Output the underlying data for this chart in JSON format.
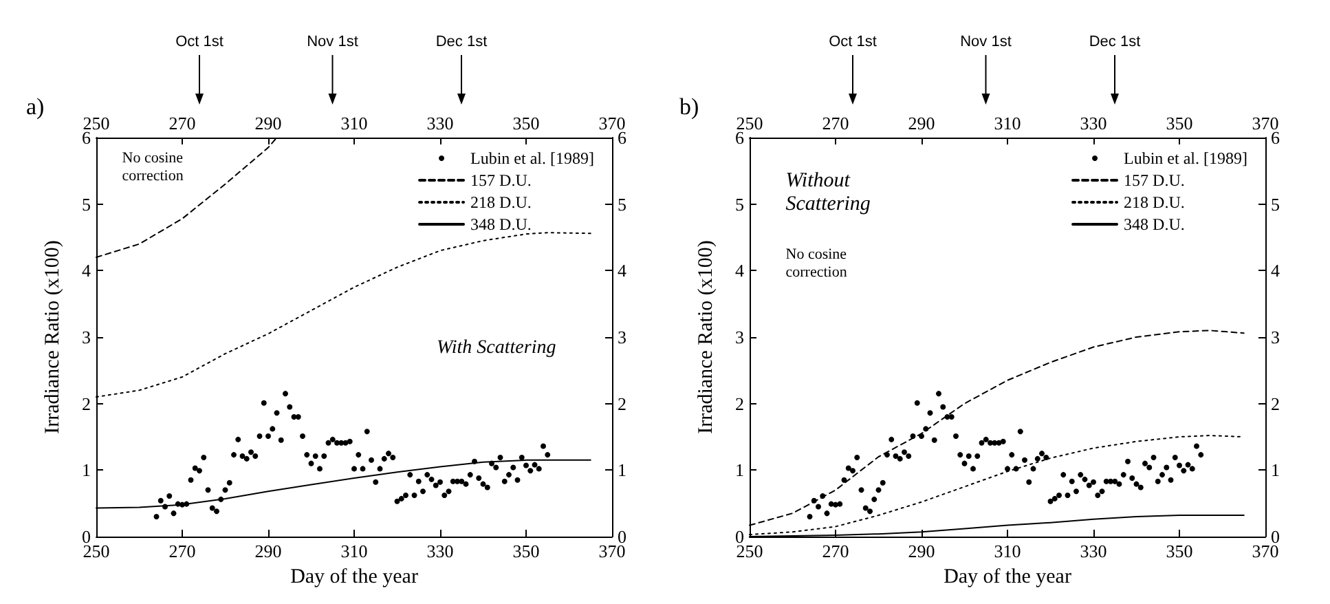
{
  "chart_data": [
    {
      "type": "line",
      "title": "a)",
      "xlabel": "Day of the year",
      "ylabel": "Irradiance Ratio (x100)",
      "xlim": [
        250,
        370
      ],
      "xticks": [
        250,
        270,
        290,
        310,
        330,
        350,
        370
      ],
      "x2lim": [
        250,
        370
      ],
      "x2ticks": [
        250,
        270,
        290,
        310,
        330,
        350,
        370
      ],
      "ylim": [
        0,
        6
      ],
      "yticks": [
        0,
        1,
        2,
        3,
        4,
        5,
        6
      ],
      "y2lim": [
        0,
        6
      ],
      "y2ticks": [
        0,
        1,
        2,
        3,
        4,
        5,
        6
      ],
      "legend": "top right",
      "grid": false,
      "marker": "none",
      "annotations": [
        "No cosine correction",
        "With Scattering",
        "Oct 1st",
        "Nov 1st",
        "Dec 1st"
      ],
      "series": [
        {
          "name": "Lubin et al. [1989]",
          "type": "scatter",
          "marker": "circle",
          "color": "#000000",
          "x": [
            264,
            265,
            266,
            267,
            268,
            269,
            270,
            271,
            272,
            273,
            274,
            275,
            276,
            277,
            278,
            279,
            280,
            281,
            282,
            283,
            284,
            285,
            286,
            287,
            288,
            289,
            290,
            291,
            292,
            293,
            294,
            295,
            296,
            297,
            298,
            299,
            300,
            301,
            302,
            303,
            304,
            305,
            306,
            307,
            308,
            309,
            310,
            311,
            312,
            313,
            314,
            315,
            316,
            317,
            318,
            319,
            320,
            321,
            322,
            323,
            324,
            325,
            326,
            327,
            328,
            329,
            330,
            331,
            332,
            333,
            334,
            335,
            336,
            337,
            338,
            339,
            340,
            341,
            342,
            343,
            344,
            345,
            346,
            347,
            348,
            349,
            350,
            351,
            352,
            353,
            354,
            355
          ],
          "values": [
            0.3,
            0.54,
            0.45,
            0.61,
            0.35,
            0.49,
            0.48,
            0.49,
            0.85,
            1.03,
            0.99,
            1.19,
            0.7,
            0.43,
            0.38,
            0.56,
            0.7,
            0.81,
            1.23,
            1.46,
            1.21,
            1.17,
            1.27,
            1.21,
            1.51,
            2.01,
            1.51,
            1.62,
            1.86,
            1.45,
            2.15,
            1.95,
            1.8,
            1.8,
            1.51,
            1.23,
            1.1,
            1.21,
            1.02,
            1.21,
            1.41,
            1.46,
            1.41,
            1.41,
            1.41,
            1.43,
            1.02,
            1.23,
            1.02,
            1.58,
            1.15,
            0.82,
            1.02,
            1.17,
            1.25,
            1.19,
            0.53,
            0.57,
            0.62,
            0.93,
            0.62,
            0.83,
            0.68,
            0.93,
            0.86,
            0.77,
            0.82,
            0.62,
            0.68,
            0.83,
            0.83,
            0.83,
            0.79,
            0.93,
            1.13,
            0.88,
            0.79,
            0.74,
            1.1,
            1.04,
            1.19,
            0.83,
            0.93,
            1.04,
            0.85,
            1.19,
            1.07,
            0.99,
            1.08,
            1.02,
            1.36,
            1.23
          ]
        },
        {
          "name": "157 D.U.",
          "color": "#000000",
          "line_style": "dashed",
          "x": [
            250,
            260,
            270,
            280,
            290,
            292
          ],
          "values": [
            4.2,
            4.4,
            4.78,
            5.3,
            5.85,
            6.0
          ]
        },
        {
          "name": "218 D.U.",
          "color": "#000000",
          "line_style": "dotted",
          "x": [
            250,
            260,
            270,
            280,
            290,
            300,
            310,
            320,
            330,
            340,
            350,
            355,
            365
          ],
          "values": [
            2.1,
            2.2,
            2.4,
            2.75,
            3.05,
            3.4,
            3.75,
            4.05,
            4.3,
            4.45,
            4.55,
            4.57,
            4.56
          ]
        },
        {
          "name": "348 D.U.",
          "color": "#000000",
          "line_style": "solid",
          "x": [
            250,
            260,
            270,
            280,
            290,
            300,
            310,
            320,
            330,
            340,
            350,
            365
          ],
          "values": [
            0.43,
            0.44,
            0.48,
            0.57,
            0.68,
            0.78,
            0.88,
            0.97,
            1.05,
            1.12,
            1.15,
            1.15
          ]
        }
      ]
    },
    {
      "type": "line",
      "title": "b)",
      "xlabel": "Day of the year",
      "ylabel": "Irradiance Ratio (x100)",
      "xlim": [
        250,
        370
      ],
      "xticks": [
        250,
        270,
        290,
        310,
        330,
        350,
        370
      ],
      "x2lim": [
        250,
        370
      ],
      "x2ticks": [
        250,
        270,
        290,
        310,
        330,
        350,
        370
      ],
      "ylim": [
        0,
        6
      ],
      "yticks": [
        0,
        1,
        2,
        3,
        4,
        5,
        6
      ],
      "y2lim": [
        0,
        6
      ],
      "y2ticks": [
        0,
        1,
        2,
        3,
        4,
        5,
        6
      ],
      "legend": "top right",
      "grid": false,
      "marker": "none",
      "annotations": [
        "Without Scattering",
        "No cosine correction",
        "Oct 1st",
        "Nov 1st",
        "Dec 1st"
      ],
      "series": [
        {
          "name": "Lubin et al. [1989]",
          "type": "scatter",
          "marker": "circle",
          "color": "#000000",
          "x": [
            264,
            265,
            266,
            267,
            268,
            269,
            270,
            271,
            272,
            273,
            274,
            275,
            276,
            277,
            278,
            279,
            280,
            281,
            282,
            283,
            284,
            285,
            286,
            287,
            288,
            289,
            290,
            291,
            292,
            293,
            294,
            295,
            296,
            297,
            298,
            299,
            300,
            301,
            302,
            303,
            304,
            305,
            306,
            307,
            308,
            309,
            310,
            311,
            312,
            313,
            314,
            315,
            316,
            317,
            318,
            319,
            320,
            321,
            322,
            323,
            324,
            325,
            326,
            327,
            328,
            329,
            330,
            331,
            332,
            333,
            334,
            335,
            336,
            337,
            338,
            339,
            340,
            341,
            342,
            343,
            344,
            345,
            346,
            347,
            348,
            349,
            350,
            351,
            352,
            353,
            354,
            355
          ],
          "values": [
            0.3,
            0.54,
            0.45,
            0.61,
            0.35,
            0.49,
            0.48,
            0.49,
            0.85,
            1.03,
            0.99,
            1.19,
            0.7,
            0.43,
            0.38,
            0.56,
            0.7,
            0.81,
            1.23,
            1.46,
            1.21,
            1.17,
            1.27,
            1.21,
            1.51,
            2.01,
            1.51,
            1.62,
            1.86,
            1.45,
            2.15,
            1.95,
            1.8,
            1.8,
            1.51,
            1.23,
            1.1,
            1.21,
            1.02,
            1.21,
            1.41,
            1.46,
            1.41,
            1.41,
            1.41,
            1.43,
            1.02,
            1.23,
            1.02,
            1.58,
            1.15,
            0.82,
            1.02,
            1.17,
            1.25,
            1.19,
            0.53,
            0.57,
            0.62,
            0.93,
            0.62,
            0.83,
            0.68,
            0.93,
            0.86,
            0.77,
            0.82,
            0.62,
            0.68,
            0.83,
            0.83,
            0.83,
            0.79,
            0.93,
            1.13,
            0.88,
            0.79,
            0.74,
            1.1,
            1.04,
            1.19,
            0.83,
            0.93,
            1.04,
            0.85,
            1.19,
            1.07,
            0.99,
            1.08,
            1.02,
            1.36,
            1.23
          ]
        },
        {
          "name": "157 D.U.",
          "color": "#000000",
          "line_style": "dashed",
          "x": [
            250,
            260,
            270,
            280,
            290,
            300,
            310,
            320,
            330,
            340,
            350,
            357,
            365
          ],
          "values": [
            0.17,
            0.35,
            0.7,
            1.2,
            1.55,
            2.0,
            2.35,
            2.62,
            2.85,
            3.0,
            3.08,
            3.1,
            3.06
          ]
        },
        {
          "name": "218 D.U.",
          "color": "#000000",
          "line_style": "dotted",
          "x": [
            250,
            260,
            270,
            280,
            290,
            300,
            310,
            320,
            330,
            340,
            350,
            357,
            365
          ],
          "values": [
            0.03,
            0.07,
            0.15,
            0.32,
            0.52,
            0.75,
            0.98,
            1.18,
            1.33,
            1.43,
            1.5,
            1.52,
            1.5
          ]
        },
        {
          "name": "348 D.U.",
          "color": "#000000",
          "line_style": "solid",
          "x": [
            250,
            260,
            270,
            280,
            290,
            300,
            310,
            320,
            330,
            340,
            350,
            365
          ],
          "values": [
            0.0,
            0.01,
            0.02,
            0.04,
            0.07,
            0.12,
            0.17,
            0.21,
            0.26,
            0.3,
            0.32,
            0.32
          ]
        }
      ]
    }
  ]
}
